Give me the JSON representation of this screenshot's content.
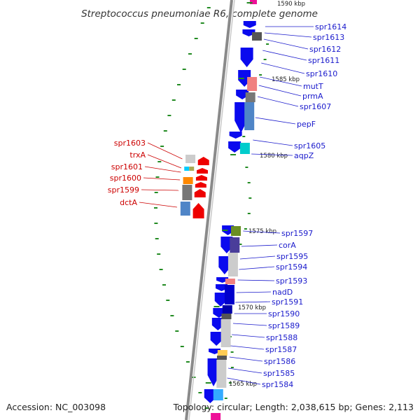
{
  "title": "Streptococcus pneumoniae R6, complete genome",
  "accession": "Accession: NC_003098",
  "topology": "Topology: circular; Length: 2,038,615 bp; Genes: 2,113",
  "colors": {
    "cds": "#0a0aee",
    "minus_strand": "#ee0000",
    "backbone": "#8a8a8a",
    "tick_mark": "#228b22",
    "right_label": "#1a1acc",
    "left_label": "#cc0000"
  },
  "tick_labels": [
    {
      "id": "t1590",
      "text": "1590 kbp"
    },
    {
      "id": "t1585",
      "text": "1585 kbp"
    },
    {
      "id": "t1580",
      "text": "1580 kbp"
    },
    {
      "id": "t1575",
      "text": "1575 kbp"
    },
    {
      "id": "t1570",
      "text": "1570 kbp"
    },
    {
      "id": "t1565",
      "text": "1565 kbp"
    }
  ],
  "right_genes": [
    "spr1614",
    "spr1613",
    "spr1612",
    "spr1611",
    "spr1610",
    "mutT",
    "prmA",
    "spr1607",
    "pepF",
    "spr1605",
    "aqpZ",
    "spr1597",
    "corA",
    "spr1595",
    "spr1594",
    "spr1593",
    "nadD",
    "spr1591",
    "spr1590",
    "spr1589",
    "spr1588",
    "spr1587",
    "spr1586",
    "spr1585",
    "spr1584"
  ],
  "left_genes": [
    "spr1603",
    "trxA",
    "spr1601",
    "spr1600",
    "spr1599",
    "dctA"
  ]
}
